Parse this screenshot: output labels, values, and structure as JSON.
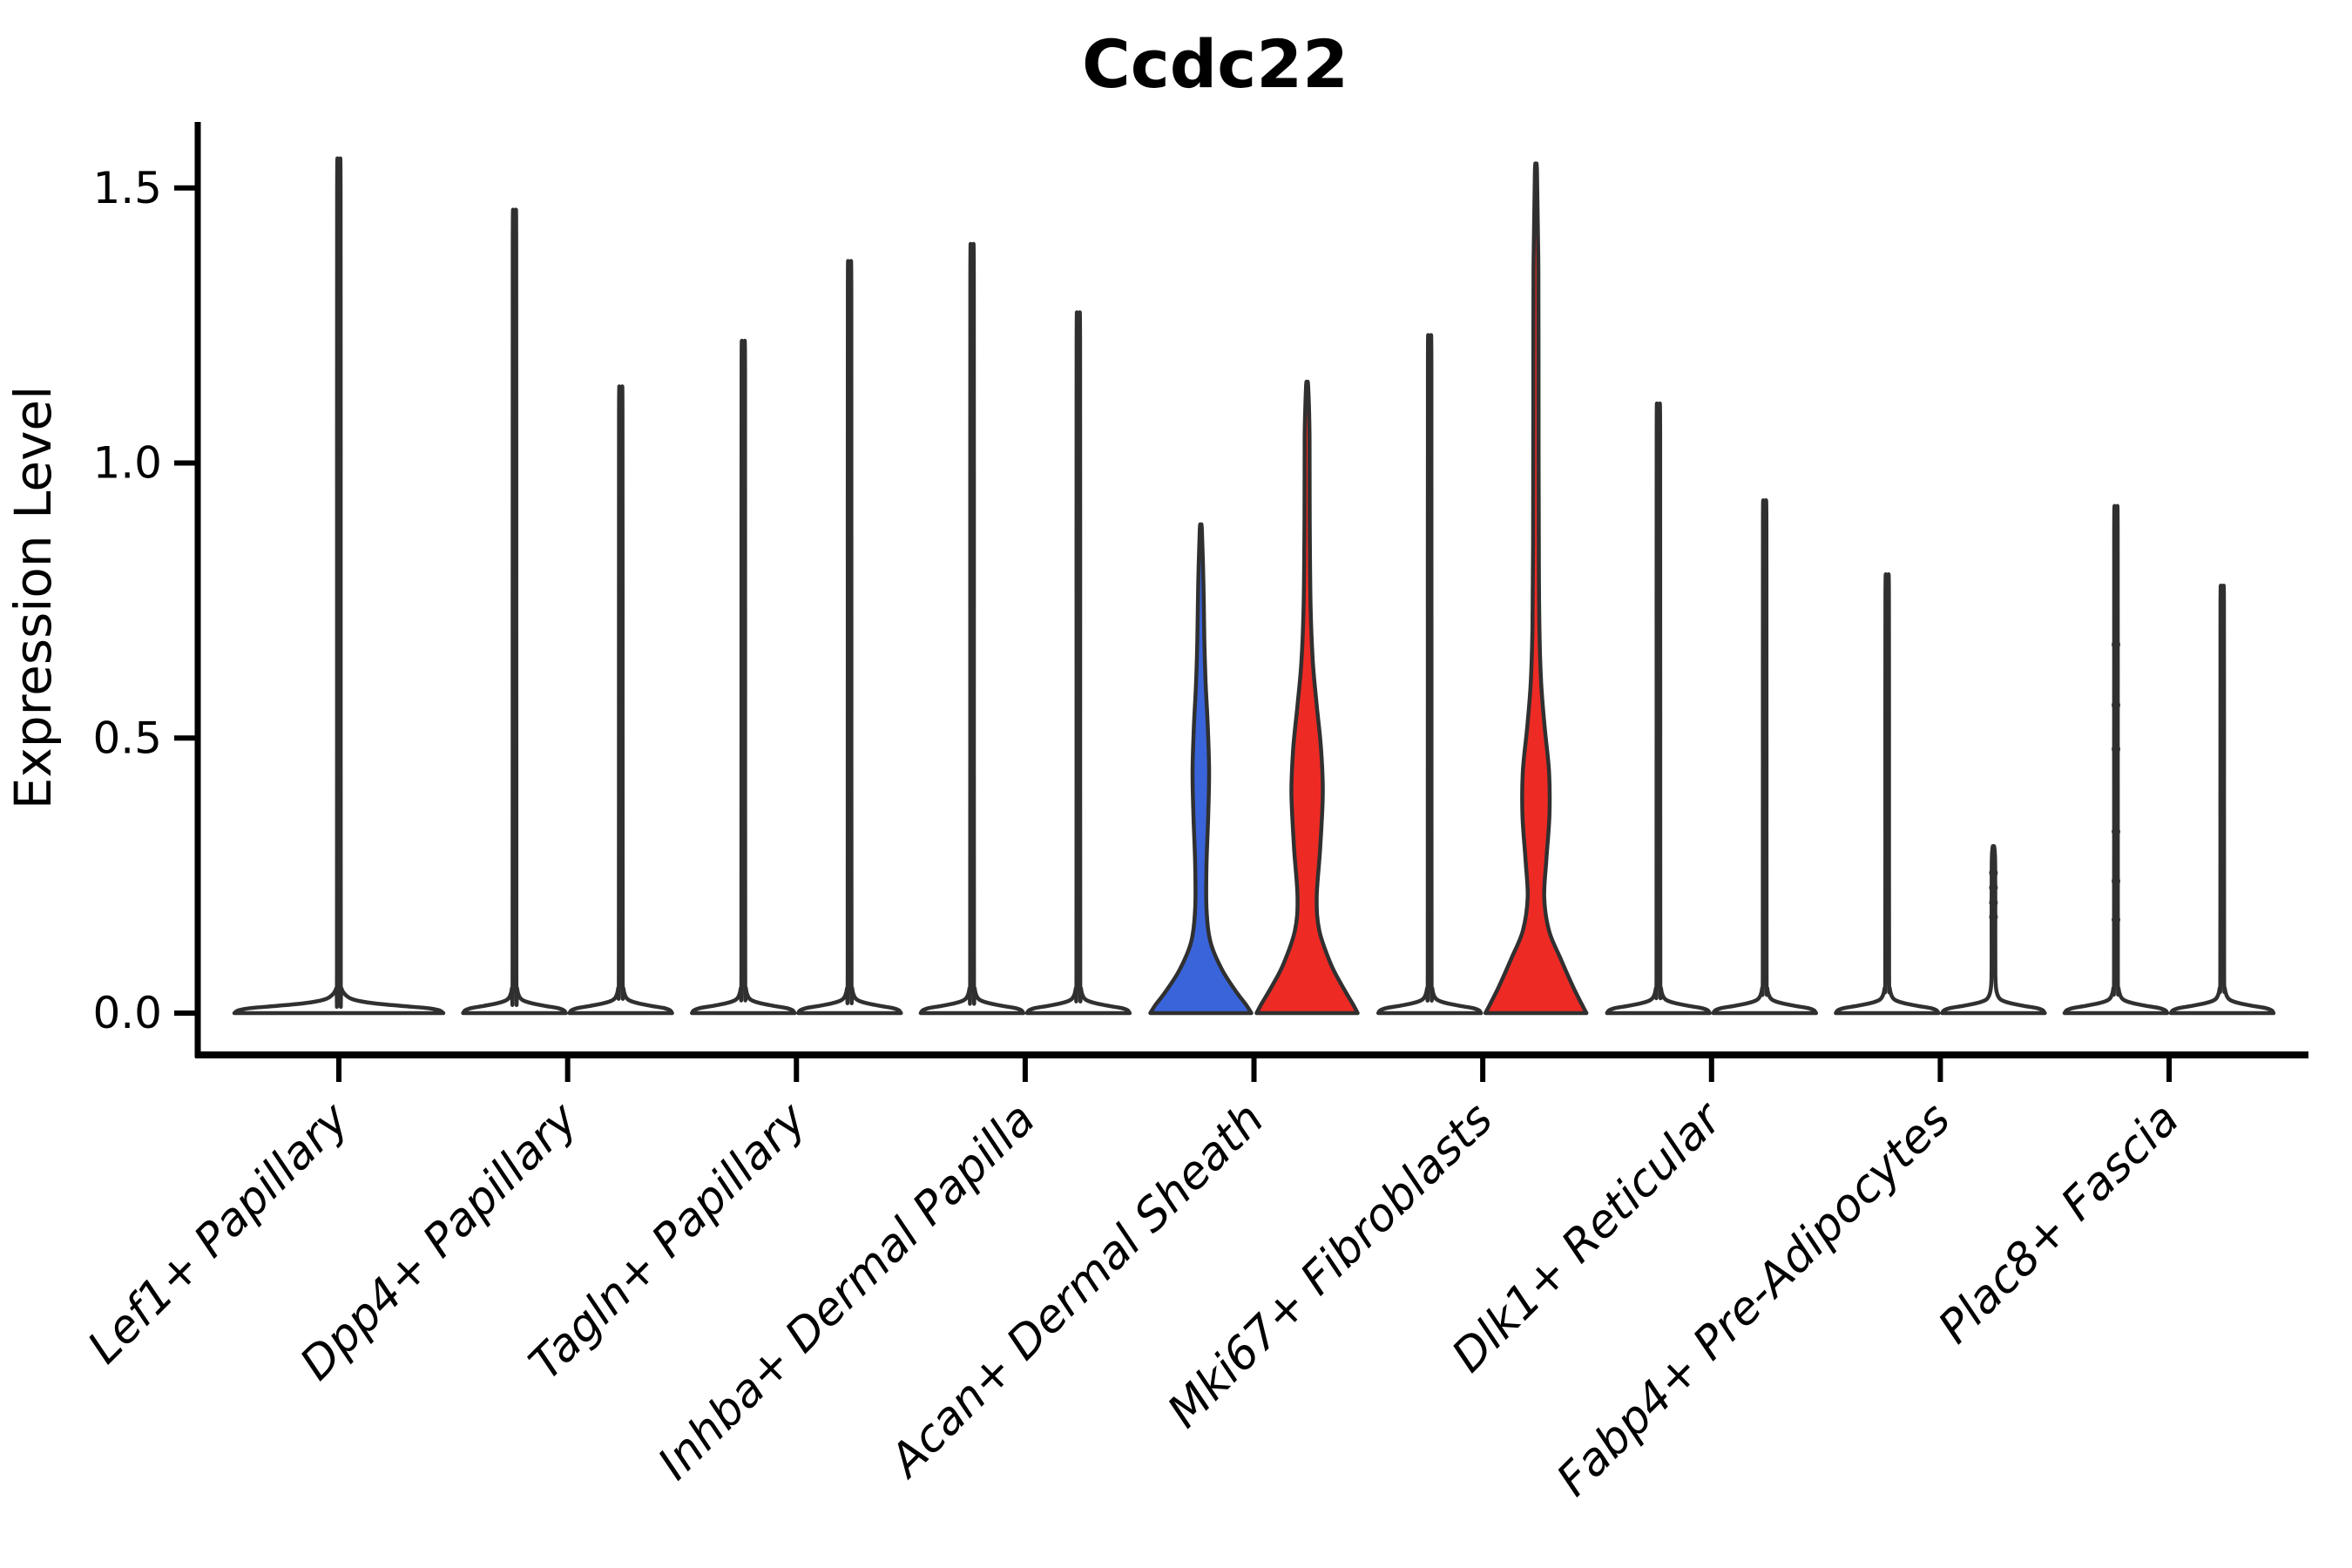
{
  "title": "Ccdc22",
  "chart_data": {
    "type": "violin",
    "title": "Ccdc22",
    "xlabel": "",
    "ylabel": "Expression Level",
    "ylim": [
      0,
      1.62
    ],
    "yticks": [
      0.0,
      0.5,
      1.0,
      1.5
    ],
    "ytick_labels": [
      "0.0",
      "0.5",
      "1.0",
      "1.5"
    ],
    "grid": false,
    "legend": "none",
    "categories": [
      "Lef1+ Papillary",
      "Dpp4+ Papillary",
      "Tagln+ Papillary",
      "Inhba+ Dermal Papilla",
      "Acan+ Dermal Sheath",
      "Mki67+ Fibroblasts",
      "Dlk1+ Reticular",
      "Fabp4+ Pre-Adipocytes",
      "Plac8+ Fascia"
    ],
    "colors": {
      "blue_fill": "#3a64da",
      "red_fill": "#ee2a25",
      "white_fill": "#ffffff",
      "outline": "#303030",
      "axis": "#000000"
    },
    "violins": [
      {
        "category_index": 0,
        "position": "center",
        "fill": "#ffffff",
        "max": 1.52,
        "shape": "spike",
        "base_halfwidth": 120
      },
      {
        "category_index": 1,
        "position": "left",
        "fill": "#ffffff",
        "max": 1.43,
        "shape": "spike",
        "base_halfwidth": 59
      },
      {
        "category_index": 1,
        "position": "right",
        "fill": "#ffffff",
        "max": 1.12,
        "shape": "spike",
        "base_halfwidth": 59
      },
      {
        "category_index": 2,
        "position": "left",
        "fill": "#ffffff",
        "max": 1.2,
        "shape": "spike",
        "base_halfwidth": 59
      },
      {
        "category_index": 2,
        "position": "right",
        "fill": "#ffffff",
        "max": 1.34,
        "shape": "spike",
        "base_halfwidth": 59
      },
      {
        "category_index": 3,
        "position": "left",
        "fill": "#ffffff",
        "max": 1.37,
        "shape": "spike",
        "base_halfwidth": 59
      },
      {
        "category_index": 3,
        "position": "right",
        "fill": "#ffffff",
        "max": 1.25,
        "shape": "spike",
        "base_halfwidth": 59
      },
      {
        "category_index": 4,
        "position": "left",
        "fill": "#3a64da",
        "max": 0.88,
        "shape": "profile",
        "profile": [
          [
            0,
            58
          ],
          [
            0.015,
            52
          ],
          [
            0.04,
            40
          ],
          [
            0.08,
            24
          ],
          [
            0.13,
            11
          ],
          [
            0.19,
            6.5
          ],
          [
            0.27,
            6.5
          ],
          [
            0.36,
            8.5
          ],
          [
            0.44,
            9.5
          ],
          [
            0.52,
            8
          ],
          [
            0.6,
            5.5
          ],
          [
            0.68,
            4
          ],
          [
            0.78,
            3
          ],
          [
            0.88,
            1.2
          ]
        ]
      },
      {
        "category_index": 4,
        "position": "right",
        "fill": "#ee2a25",
        "max": 1.14,
        "shape": "profile",
        "profile": [
          [
            0,
            58
          ],
          [
            0.015,
            53
          ],
          [
            0.05,
            40
          ],
          [
            0.09,
            27
          ],
          [
            0.15,
            14
          ],
          [
            0.21,
            11
          ],
          [
            0.3,
            15
          ],
          [
            0.4,
            18
          ],
          [
            0.48,
            16
          ],
          [
            0.56,
            11
          ],
          [
            0.64,
            6.5
          ],
          [
            0.74,
            4
          ],
          [
            0.9,
            3
          ],
          [
            1.05,
            2.8
          ],
          [
            1.14,
            1.2
          ]
        ]
      },
      {
        "category_index": 5,
        "position": "left",
        "fill": "#ffffff",
        "max": 1.21,
        "shape": "spike",
        "base_halfwidth": 59
      },
      {
        "category_index": 5,
        "position": "right",
        "fill": "#ee2a25",
        "max": 1.53,
        "shape": "profile",
        "profile": [
          [
            0,
            58
          ],
          [
            0.015,
            53
          ],
          [
            0.05,
            42
          ],
          [
            0.1,
            28
          ],
          [
            0.15,
            15
          ],
          [
            0.21,
            9.5
          ],
          [
            0.28,
            12
          ],
          [
            0.36,
            15.5
          ],
          [
            0.44,
            15
          ],
          [
            0.52,
            10
          ],
          [
            0.6,
            6
          ],
          [
            0.7,
            4
          ],
          [
            0.85,
            3.3
          ],
          [
            1.1,
            3
          ],
          [
            1.35,
            2.8
          ],
          [
            1.53,
            1.2
          ]
        ]
      },
      {
        "category_index": 6,
        "position": "left",
        "fill": "#ffffff",
        "max": 1.09,
        "shape": "spike",
        "base_halfwidth": 59
      },
      {
        "category_index": 6,
        "position": "right",
        "fill": "#ffffff",
        "max": 0.92,
        "shape": "spike",
        "base_halfwidth": 59
      },
      {
        "category_index": 7,
        "position": "left",
        "fill": "#ffffff",
        "max": 0.79,
        "shape": "spike",
        "base_halfwidth": 59
      },
      {
        "category_index": 7,
        "position": "right",
        "fill": "#ffffff",
        "max": 0.3,
        "shape": "spike",
        "base_halfwidth": 59,
        "dots": [
          0.255,
          0.228,
          0.201,
          0.175
        ]
      },
      {
        "category_index": 8,
        "position": "left",
        "fill": "#ffffff",
        "max": 0.91,
        "shape": "spike",
        "base_halfwidth": 59,
        "dots": [
          0.67,
          0.56,
          0.48,
          0.33,
          0.24,
          0.17
        ]
      },
      {
        "category_index": 8,
        "position": "right",
        "fill": "#ffffff",
        "max": 0.77,
        "shape": "spike",
        "base_halfwidth": 59
      }
    ]
  }
}
